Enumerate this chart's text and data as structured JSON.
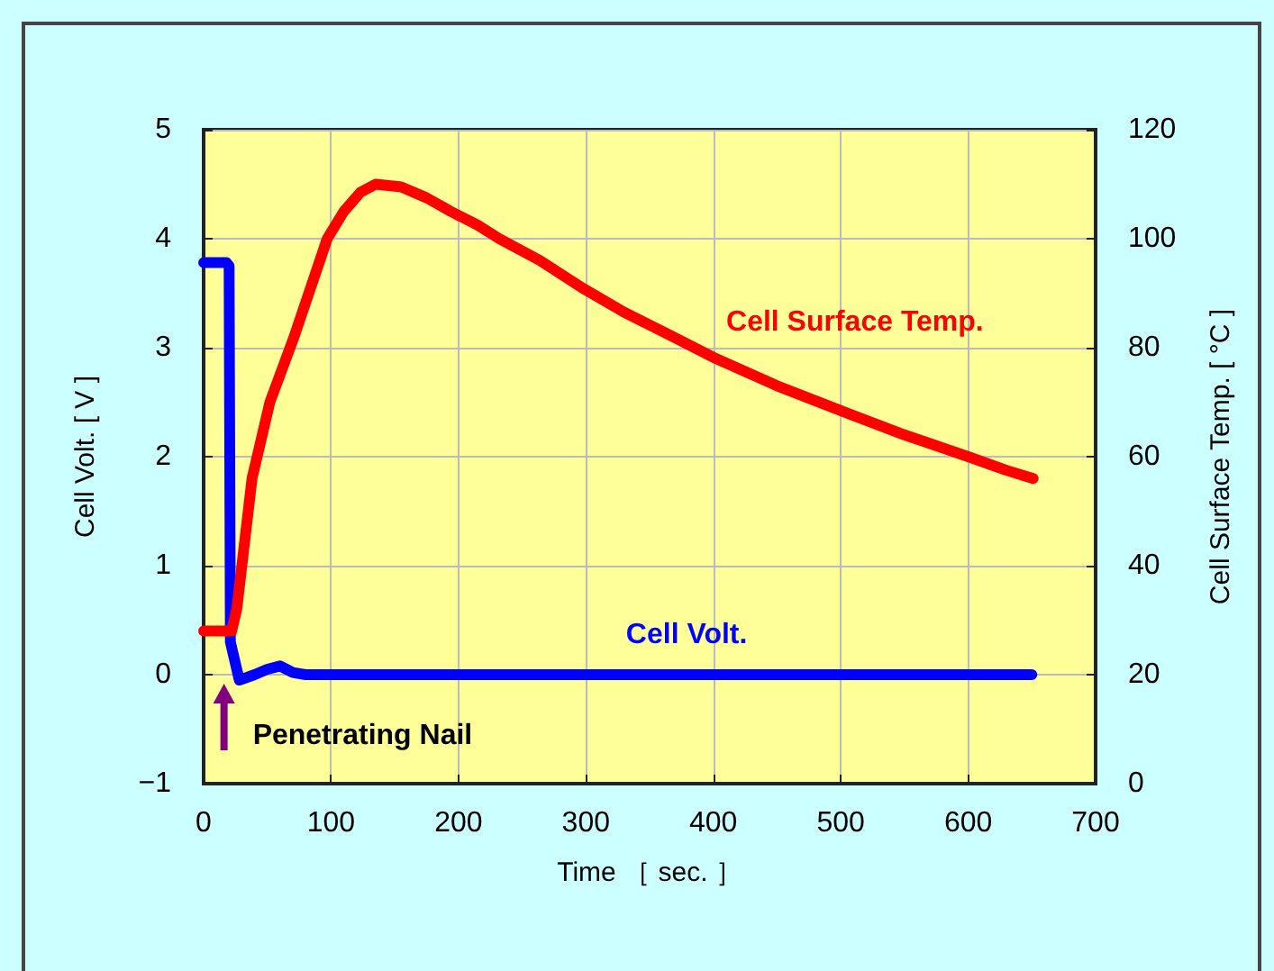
{
  "chart_data": {
    "type": "line",
    "xlabel": "Time ［ sec. ］",
    "ylabel": "Cell Volt. [ V ]",
    "y2label": "Cell Surface Temp. [ °C ]",
    "xlim": [
      0,
      700
    ],
    "xticks": [
      0,
      100,
      200,
      300,
      400,
      500,
      600,
      700
    ],
    "ylim": [
      -1,
      5
    ],
    "yticks": [
      {
        "value": -1,
        "label": "−1"
      },
      0,
      1,
      2,
      3,
      4,
      5
    ],
    "y2lim": [
      0,
      120
    ],
    "y2ticks": [
      0,
      20,
      40,
      60,
      80,
      100,
      120
    ],
    "grid": true,
    "legend": false,
    "marker": "none",
    "line_style": "solid",
    "annotations": [
      {
        "text": "Penetrating Nail",
        "x": 16,
        "y": 0
      }
    ],
    "series": [
      {
        "name": "Cell Volt.",
        "color": "#0000ff",
        "x": [
          0,
          18,
          20,
          21,
          24,
          28,
          40,
          50,
          60,
          70,
          80,
          200,
          400,
          650
        ],
        "values": [
          3.78,
          3.78,
          3.75,
          0.3,
          0.15,
          -0.05,
          0,
          0.05,
          0.08,
          0.02,
          0,
          0,
          0,
          0
        ]
      },
      {
        "name": "Cell Surface Temp.",
        "color": "#ff0000",
        "axis": "y2",
        "x": [
          0,
          22,
          26,
          30,
          38,
          52,
          71,
          97,
          110,
          123,
          135,
          155,
          175,
          194,
          215,
          232,
          264,
          297,
          330,
          360,
          402,
          450,
          505,
          550,
          600,
          630,
          651
        ],
        "values": [
          28,
          28,
          32,
          40,
          56,
          70,
          82,
          100,
          105,
          108.5,
          110,
          109.5,
          107.5,
          105,
          102.5,
          100,
          96,
          91,
          86.5,
          83,
          78,
          73,
          68,
          64,
          60,
          57.5,
          56
        ]
      }
    ]
  }
}
